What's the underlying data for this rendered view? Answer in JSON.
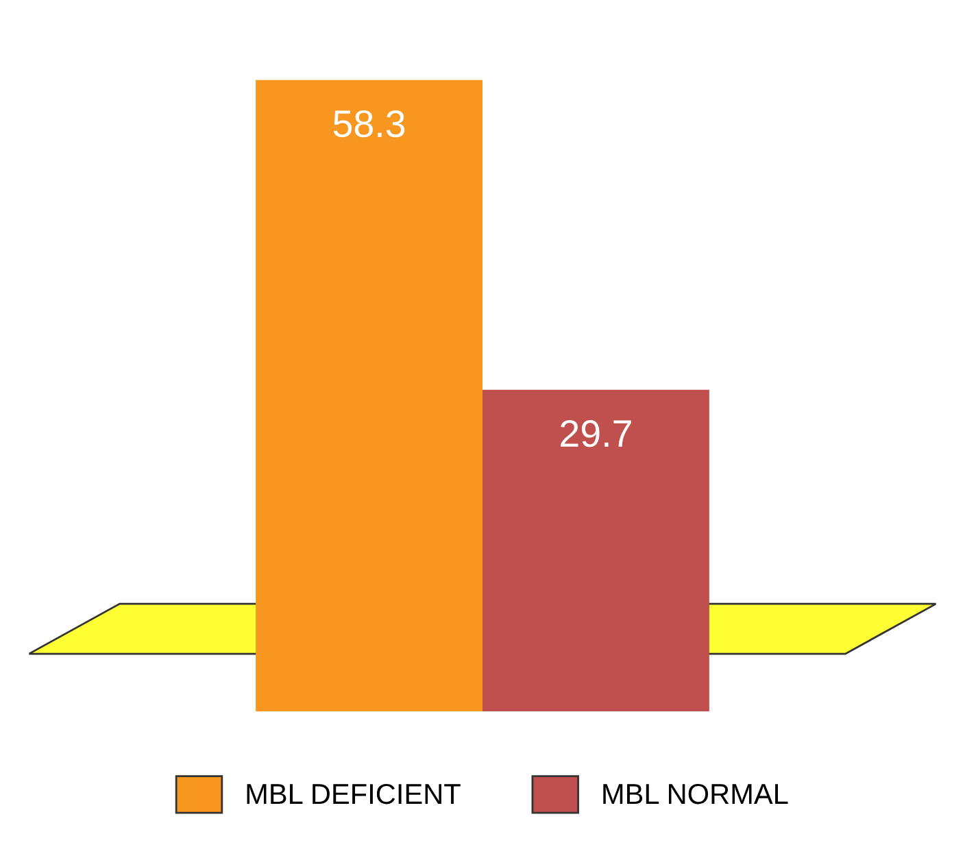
{
  "chart_data": {
    "type": "bar",
    "categories": [
      null
    ],
    "series": [
      {
        "name": "MBL DEFICIENT",
        "color": "#f7971f",
        "values": [
          58.3
        ]
      },
      {
        "name": "MBL NORMAL",
        "color": "#c0504d",
        "values": [
          29.7
        ]
      }
    ],
    "data_labels": true,
    "legend": "bottom"
  }
}
